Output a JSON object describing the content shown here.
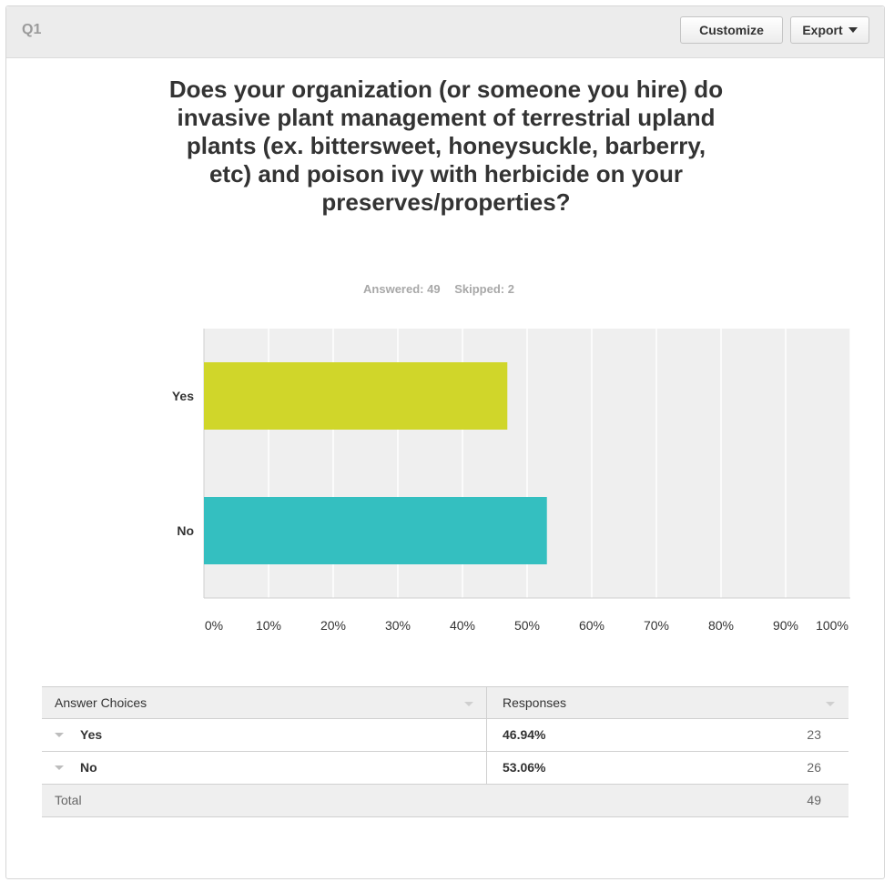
{
  "header": {
    "question_number": "Q1",
    "customize_label": "Customize",
    "export_label": "Export"
  },
  "question": {
    "title": "Does your organization (or someone you hire) do invasive plant management of terrestrial upland plants (ex. bittersweet, honeysuckle, barberry, etc) and poison ivy with herbicide on your preserves/properties?",
    "answered": "Answered: 49",
    "skipped": "Skipped: 2"
  },
  "chart_data": {
    "type": "bar",
    "orientation": "horizontal",
    "categories": [
      "Yes",
      "No"
    ],
    "values": [
      46.94,
      53.06
    ],
    "colors": [
      "#d0d62a",
      "#34bfc0"
    ],
    "xlim": [
      0,
      100
    ],
    "x_ticks": [
      "0%",
      "10%",
      "20%",
      "30%",
      "40%",
      "50%",
      "60%",
      "70%",
      "80%",
      "90%",
      "100%"
    ],
    "grid": true
  },
  "table": {
    "headers": [
      "Answer Choices",
      "Responses"
    ],
    "rows": [
      {
        "choice": "Yes",
        "percent": "46.94%",
        "count": "23"
      },
      {
        "choice": "No",
        "percent": "53.06%",
        "count": "26"
      }
    ],
    "total_label": "Total",
    "total_count": "49"
  },
  "colors": {
    "plot_background": "#efefef",
    "gridline": "#ffffff",
    "header_background": "#ececec"
  }
}
